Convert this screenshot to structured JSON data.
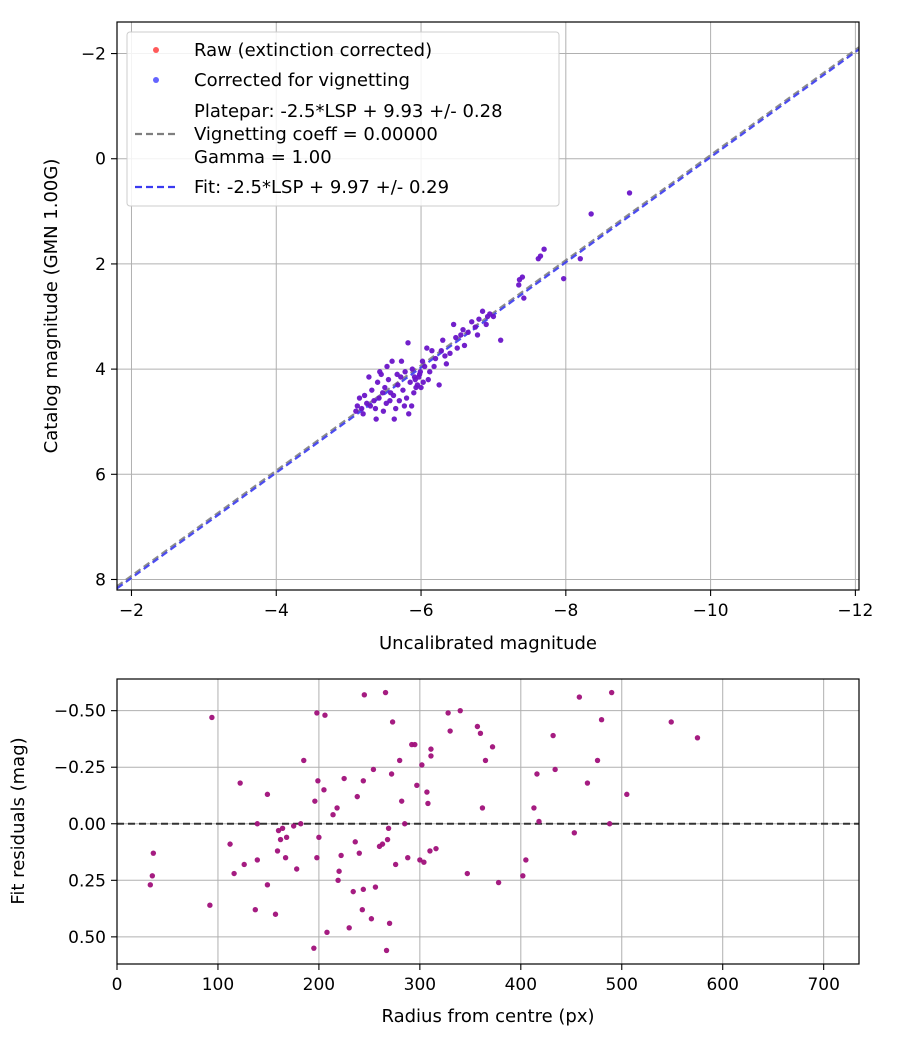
{
  "chart_data": [
    {
      "type": "scatter",
      "xlabel": "Uncalibrated magnitude",
      "ylabel": "Catalog magnitude (GMN 1.00G)",
      "xlim": [
        -1.8,
        -12.05
      ],
      "ylim": [
        -2.6,
        8.2
      ],
      "xticks": [
        -2,
        -4,
        -6,
        -8,
        -10,
        -12
      ],
      "xtick_labels": [
        "−2",
        "−4",
        "−6",
        "−8",
        "−10",
        "−12"
      ],
      "yticks": [
        -2,
        0,
        2,
        4,
        6,
        8
      ],
      "ytick_labels": [
        "−2",
        "0",
        "2",
        "4",
        "6",
        "8"
      ],
      "grid": true,
      "legend_position": "upper-left",
      "legend": [
        {
          "label": "Raw (extinction corrected)",
          "kind": "marker",
          "color": "#ff5a5a"
        },
        {
          "label": "Corrected for vignetting",
          "kind": "marker",
          "color": "#6464ff"
        },
        {
          "label_lines": [
            "Platepar: -2.5*LSP + 9.93 +/- 0.28",
            "Vignetting coeff = 0.00000",
            "Gamma = 1.00"
          ],
          "kind": "dash",
          "color": "#7f7f7f"
        },
        {
          "label": "Fit: -2.5*LSP + 9.97 +/- 0.29",
          "kind": "dash",
          "color": "#3a3af0"
        }
      ],
      "lines": [
        {
          "name": "platepar",
          "slope": 1,
          "intercept": 9.93,
          "color": "#7f7f7f"
        },
        {
          "name": "fit",
          "slope": 1,
          "intercept": 9.97,
          "color": "#3a3af0"
        }
      ],
      "point_color": "#6a14c8",
      "points": [
        [
          -8.88,
          0.65
        ],
        [
          -8.35,
          1.05
        ],
        [
          -8.2,
          1.9
        ],
        [
          -7.97,
          2.28
        ],
        [
          -7.7,
          1.72
        ],
        [
          -7.65,
          1.85
        ],
        [
          -7.62,
          1.9
        ],
        [
          -7.4,
          2.25
        ],
        [
          -7.36,
          2.3
        ],
        [
          -7.42,
          2.65
        ],
        [
          -7.35,
          2.4
        ],
        [
          -7.1,
          3.45
        ],
        [
          -7.0,
          3.0
        ],
        [
          -6.95,
          2.95
        ],
        [
          -6.9,
          3.15
        ],
        [
          -6.85,
          2.9
        ],
        [
          -6.8,
          3.05
        ],
        [
          -6.75,
          3.2
        ],
        [
          -6.7,
          3.1
        ],
        [
          -6.65,
          3.3
        ],
        [
          -6.6,
          3.55
        ],
        [
          -6.55,
          3.35
        ],
        [
          -6.5,
          3.6
        ],
        [
          -6.45,
          3.15
        ],
        [
          -6.4,
          3.7
        ],
        [
          -6.35,
          3.9
        ],
        [
          -6.3,
          3.45
        ],
        [
          -6.28,
          3.65
        ],
        [
          -6.2,
          3.8
        ],
        [
          -6.15,
          3.65
        ],
        [
          -6.1,
          4.2
        ],
        [
          -6.05,
          3.95
        ],
        [
          -6.02,
          3.85
        ],
        [
          -6.0,
          4.35
        ],
        [
          -5.98,
          4.1
        ],
        [
          -5.95,
          4.3
        ],
        [
          -5.92,
          4.2
        ],
        [
          -5.9,
          4.45
        ],
        [
          -5.88,
          4.0
        ],
        [
          -5.85,
          4.25
        ],
        [
          -5.82,
          3.5
        ],
        [
          -5.8,
          4.55
        ],
        [
          -5.78,
          4.05
        ],
        [
          -5.75,
          4.4
        ],
        [
          -5.72,
          4.15
        ],
        [
          -5.7,
          4.6
        ],
        [
          -5.68,
          4.3
        ],
        [
          -5.65,
          4.75
        ],
        [
          -5.62,
          4.5
        ],
        [
          -5.6,
          3.85
        ],
        [
          -5.58,
          4.45
        ],
        [
          -5.55,
          4.2
        ],
        [
          -5.52,
          4.65
        ],
        [
          -5.5,
          4.35
        ],
        [
          -5.48,
          4.8
        ],
        [
          -5.45,
          4.1
        ],
        [
          -5.42,
          4.55
        ],
        [
          -5.4,
          4.25
        ],
        [
          -5.38,
          4.95
        ],
        [
          -5.35,
          4.6
        ],
        [
          -5.32,
          4.4
        ],
        [
          -5.3,
          4.7
        ],
        [
          -5.28,
          4.15
        ],
        [
          -5.25,
          4.65
        ],
        [
          -5.22,
          4.5
        ],
        [
          -5.2,
          4.85
        ],
        [
          -5.18,
          4.75
        ],
        [
          -5.15,
          4.55
        ],
        [
          -5.12,
          4.7
        ],
        [
          -5.1,
          4.8
        ],
        [
          -6.25,
          4.3
        ],
        [
          -6.12,
          4.05
        ],
        [
          -5.97,
          4.15
        ],
        [
          -5.93,
          4.35
        ],
        [
          -5.87,
          4.7
        ],
        [
          -5.83,
          4.85
        ],
        [
          -5.77,
          4.7
        ],
        [
          -5.73,
          3.85
        ],
        [
          -5.67,
          4.1
        ],
        [
          -5.63,
          4.95
        ],
        [
          -5.57,
          4.6
        ],
        [
          -5.53,
          3.95
        ],
        [
          -5.47,
          4.45
        ],
        [
          -5.43,
          4.05
        ],
        [
          -5.37,
          4.75
        ],
        [
          -6.08,
          3.6
        ],
        [
          -6.18,
          3.95
        ],
        [
          -6.33,
          3.75
        ],
        [
          -6.48,
          3.4
        ],
        [
          -6.58,
          3.25
        ],
        [
          -6.78,
          3.35
        ],
        [
          -6.92,
          3.0
        ],
        [
          -6.03,
          4.25
        ],
        [
          -5.99,
          4.05
        ],
        [
          -5.91,
          4.15
        ]
      ]
    },
    {
      "type": "scatter",
      "xlabel": "Radius from centre (px)",
      "ylabel": "Fit residuals (mag)",
      "xlim": [
        0,
        735
      ],
      "ylim": [
        -0.64,
        0.62
      ],
      "xticks": [
        0,
        100,
        200,
        300,
        400,
        500,
        600,
        700
      ],
      "xtick_labels": [
        "0",
        "100",
        "200",
        "300",
        "400",
        "500",
        "600",
        "700"
      ],
      "yticks": [
        0.5,
        0.25,
        0,
        -0.25,
        -0.5
      ],
      "ytick_labels": [
        "0.50",
        "0.25",
        "0.00",
        "−0.25",
        "−0.50"
      ],
      "grid": true,
      "reference_line": {
        "y": 0,
        "color": "#333333"
      },
      "point_color": "#a0107a",
      "points": [
        [
          33,
          0.27
        ],
        [
          35,
          0.23
        ],
        [
          36,
          0.13
        ],
        [
          92,
          0.36
        ],
        [
          94,
          -0.47
        ],
        [
          112,
          0.09
        ],
        [
          116,
          0.22
        ],
        [
          122,
          -0.18
        ],
        [
          126,
          0.18
        ],
        [
          137,
          0.38
        ],
        [
          139,
          0.16
        ],
        [
          139,
          0.0
        ],
        [
          149,
          0.27
        ],
        [
          149,
          -0.13
        ],
        [
          157,
          0.4
        ],
        [
          159,
          0.12
        ],
        [
          160,
          0.03
        ],
        [
          162,
          0.07
        ],
        [
          164,
          0.02
        ],
        [
          167,
          0.15
        ],
        [
          168,
          0.06
        ],
        [
          175,
          0.01
        ],
        [
          178,
          0.2
        ],
        [
          182,
          0.0
        ],
        [
          185,
          -0.28
        ],
        [
          195,
          0.55
        ],
        [
          196,
          -0.1
        ],
        [
          198,
          0.15
        ],
        [
          198,
          -0.49
        ],
        [
          199,
          -0.19
        ],
        [
          200,
          0.06
        ],
        [
          205,
          -0.15
        ],
        [
          206,
          -0.48
        ],
        [
          208,
          0.48
        ],
        [
          214,
          -0.04
        ],
        [
          218,
          -0.07
        ],
        [
          219,
          0.25
        ],
        [
          220,
          0.21
        ],
        [
          222,
          0.14
        ],
        [
          225,
          -0.2
        ],
        [
          230,
          0.46
        ],
        [
          234,
          0.3
        ],
        [
          236,
          0.08
        ],
        [
          238,
          -0.12
        ],
        [
          240,
          0.13
        ],
        [
          243,
          0.38
        ],
        [
          244,
          0.29
        ],
        [
          244,
          -0.19
        ],
        [
          245,
          -0.57
        ],
        [
          252,
          0.42
        ],
        [
          254,
          -0.24
        ],
        [
          256,
          0.28
        ],
        [
          260,
          0.1
        ],
        [
          263,
          0.09
        ],
        [
          266,
          -0.58
        ],
        [
          267,
          0.56
        ],
        [
          268,
          0.07
        ],
        [
          269,
          0.02
        ],
        [
          270,
          0.44
        ],
        [
          272,
          -0.22
        ],
        [
          273,
          -0.45
        ],
        [
          276,
          0.18
        ],
        [
          280,
          -0.28
        ],
        [
          282,
          -0.1
        ],
        [
          285,
          0.0
        ],
        [
          288,
          0.15
        ],
        [
          292,
          -0.35
        ],
        [
          295,
          -0.35
        ],
        [
          297,
          -0.17
        ],
        [
          300,
          0.16
        ],
        [
          302,
          -0.26
        ],
        [
          304,
          0.17
        ],
        [
          307,
          -0.14
        ],
        [
          308,
          -0.09
        ],
        [
          310,
          0.12
        ],
        [
          311,
          -0.3
        ],
        [
          311,
          -0.33
        ],
        [
          316,
          0.11
        ],
        [
          328,
          -0.49
        ],
        [
          330,
          -0.41
        ],
        [
          340,
          -0.5
        ],
        [
          347,
          0.22
        ],
        [
          357,
          -0.43
        ],
        [
          360,
          -0.4
        ],
        [
          362,
          -0.07
        ],
        [
          365,
          -0.28
        ],
        [
          372,
          -0.34
        ],
        [
          378,
          0.26
        ],
        [
          402,
          0.23
        ],
        [
          405,
          0.16
        ],
        [
          413,
          -0.07
        ],
        [
          416,
          -0.22
        ],
        [
          418,
          -0.01
        ],
        [
          432,
          -0.39
        ],
        [
          434,
          -0.24
        ],
        [
          453,
          0.04
        ],
        [
          458,
          -0.56
        ],
        [
          466,
          -0.18
        ],
        [
          476,
          -0.28
        ],
        [
          480,
          -0.46
        ],
        [
          488,
          0.0
        ],
        [
          490,
          -0.58
        ],
        [
          505,
          -0.13
        ],
        [
          549,
          -0.45
        ],
        [
          575,
          -0.38
        ]
      ]
    }
  ]
}
